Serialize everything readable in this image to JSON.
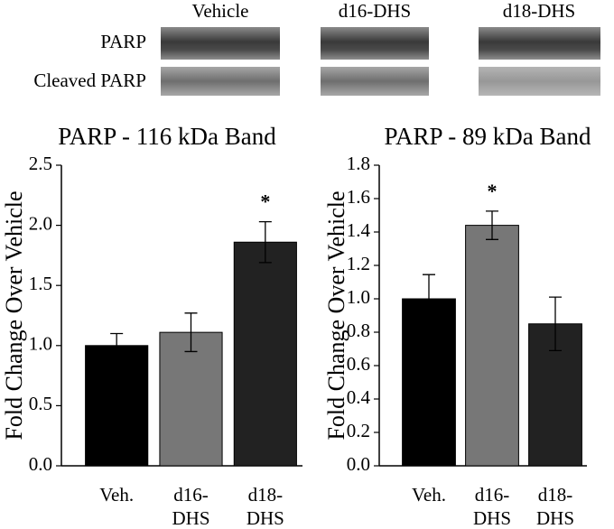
{
  "blot": {
    "lanes": [
      "Vehicle",
      "d16-DHS",
      "d18-DHS"
    ],
    "rows": [
      "PARP",
      "Cleaved PARP"
    ]
  },
  "chart_data": [
    {
      "type": "bar",
      "title": "PARP - 116 kDa Band",
      "y_label": "Fold Change Over Vehicle",
      "categories": [
        "Veh.",
        "d16-\nDHS",
        "d18-\nDHS"
      ],
      "values": [
        1.0,
        1.11,
        1.86
      ],
      "errors": [
        0.1,
        0.16,
        0.17
      ],
      "colors": [
        "#000000",
        "#777777",
        "#222222"
      ],
      "annotations": [
        {
          "text": "*",
          "index": 2
        }
      ],
      "ylim": [
        0,
        2.5
      ],
      "yticks": [
        {
          "value": 0,
          "label": "0.0"
        },
        0.5,
        {
          "value": 1,
          "label": "1.0"
        },
        1.5,
        {
          "value": 2,
          "label": "2.0"
        },
        2.5
      ]
    },
    {
      "type": "bar",
      "title": "PARP - 89 kDa Band",
      "y_label": "Fold Change Over Vehicle",
      "categories": [
        "Veh.",
        "d16-\nDHS",
        "d18-\nDHS"
      ],
      "values": [
        1.0,
        1.44,
        0.85
      ],
      "errors": [
        0.145,
        0.085,
        0.16
      ],
      "colors": [
        "#000000",
        "#777777",
        "#222222"
      ],
      "annotations": [
        {
          "text": "*",
          "index": 1
        }
      ],
      "ylim": [
        0,
        1.8
      ],
      "yticks": [
        {
          "value": 0,
          "label": "0.0"
        },
        0.2,
        0.4,
        0.6,
        0.8,
        {
          "value": 1,
          "label": "1.0"
        },
        1.2,
        1.4,
        1.6,
        1.8
      ]
    }
  ]
}
